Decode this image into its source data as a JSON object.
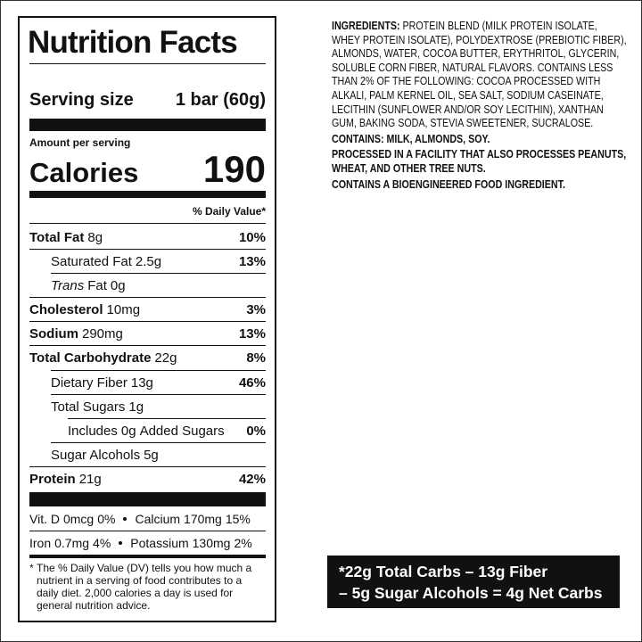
{
  "nutrition_facts": {
    "title": "Nutrition Facts",
    "serving_size_label": "Serving size",
    "serving_size": "1 bar (60g)",
    "amount_per_serving": "Amount per serving",
    "calories_label": "Calories",
    "calories": 190,
    "daily_value_header": "% Daily Value*",
    "rows": [
      {
        "name": "Total Fat",
        "amount": "8g",
        "dv": "10%"
      },
      {
        "name": "Saturated Fat",
        "amount": "2.5g",
        "dv": "13%"
      },
      {
        "name_prefix": "Trans",
        "name": "Fat",
        "amount": "0g"
      },
      {
        "name": "Cholesterol",
        "amount": "10mg",
        "dv": "3%"
      },
      {
        "name": "Sodium",
        "amount": "290mg",
        "dv": "13%"
      },
      {
        "name": "Total Carbohydrate",
        "amount": "22g",
        "dv": "8%"
      },
      {
        "name": "Dietary Fiber",
        "amount": "13g",
        "dv": "46%"
      },
      {
        "name": "Total Sugars",
        "amount": "1g"
      },
      {
        "name": "Includes",
        "amount": "0g",
        "suffix": "Added Sugars",
        "dv": "0%"
      },
      {
        "name": "Sugar Alcohols",
        "amount": "5g"
      },
      {
        "name": "Protein",
        "amount": "21g",
        "dv": "42%"
      }
    ],
    "micronutrients": [
      {
        "name": "Vit. D",
        "amount": "0mcg",
        "dv": "0%"
      },
      {
        "name": "Calcium",
        "amount": "170mg",
        "dv": "15%"
      },
      {
        "name": "Iron",
        "amount": "0.7mg",
        "dv": "4%"
      },
      {
        "name": "Potassium",
        "amount": "130mg",
        "dv": "2%"
      }
    ],
    "footnote_mark": "*",
    "footnote": "The % Daily Value (DV) tells you how much a nutrient in a serving of food contributes to a daily diet. 2,000 calories a day is used for general nutrition advice."
  },
  "ingredients": {
    "label": "INGREDIENTS:",
    "text": "PROTEIN BLEND (MILK PROTEIN ISOLATE, WHEY PROTEIN ISOLATE), POLYDEXTROSE (PREBIOTIC FIBER), ALMONDS, WATER, COCOA BUTTER, ERYTHRITOL, GLYCERIN, SOLUBLE CORN FIBER, NATURAL FLAVORS. CONTAINS LESS THAN 2% OF THE FOLLOWING: COCOA PROCESSED WITH ALKALI, PALM KERNEL OIL, SEA SALT, SODIUM CASEINATE, LECITHIN (SUNFLOWER AND/OR SOY LECITHIN), XANTHAN GUM, BAKING SODA, STEVIA SWEETENER, SUCRALOSE.",
    "contains": "CONTAINS: MILK, ALMONDS, SOY.",
    "facility": "PROCESSED IN A FACILITY THAT ALSO PROCESSES PEANUTS, WHEAT, AND OTHER TREE NUTS.",
    "bioengineered": "CONTAINS A BIOENGINEERED FOOD INGREDIENT."
  },
  "net_carbs": {
    "lines": [
      "*22g Total Carbs – 13g Fiber",
      "– 5g Sugar Alcohols = 4g Net Carbs"
    ]
  }
}
